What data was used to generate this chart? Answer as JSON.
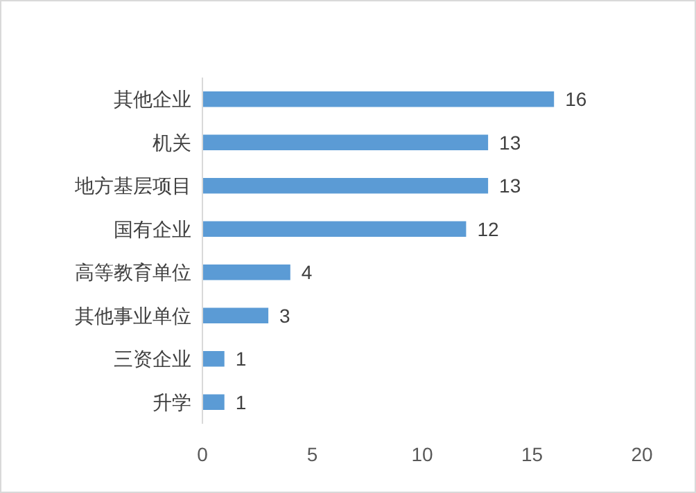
{
  "chart_data": {
    "type": "bar",
    "orientation": "horizontal",
    "categories": [
      "其他企业",
      "机关",
      "地方基层项目",
      "国有企业",
      "高等教育单位",
      "其他事业单位",
      "三资企业",
      "升学"
    ],
    "values": [
      16,
      13,
      13,
      12,
      4,
      3,
      1,
      1
    ],
    "color": "#5b9bd5",
    "xlim": [
      0,
      20
    ],
    "xticks": [
      0,
      5,
      10,
      15,
      20
    ],
    "data_labels": true
  }
}
